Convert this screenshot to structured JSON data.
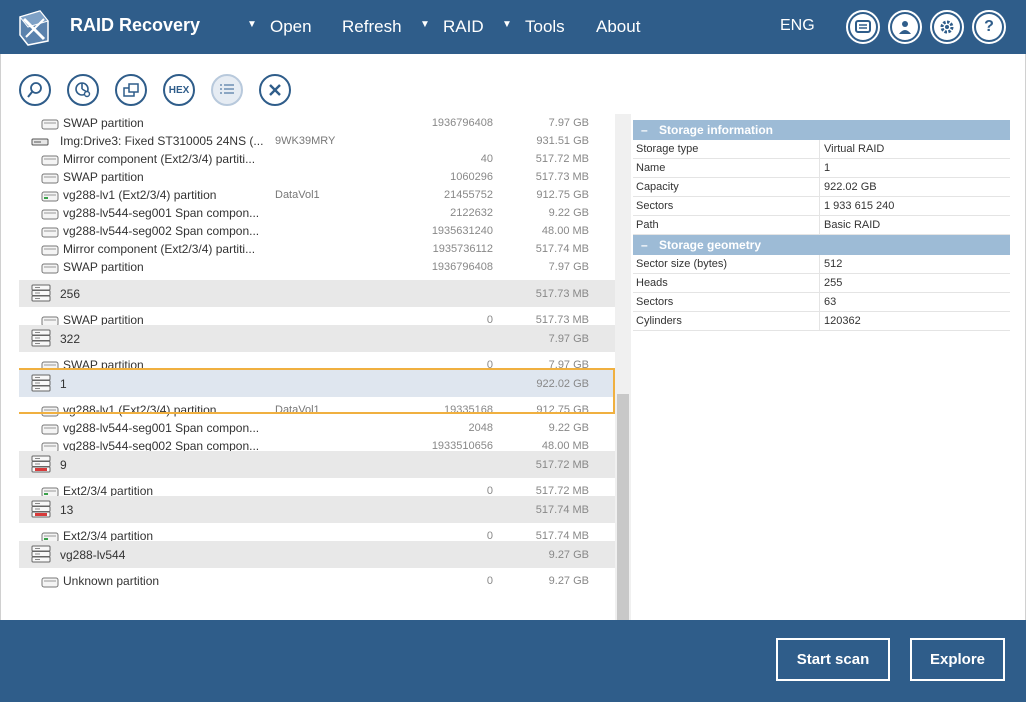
{
  "app": {
    "title": "RAID Recovery"
  },
  "menu": {
    "open": "Open",
    "refresh": "Refresh",
    "raid": "RAID",
    "tools": "Tools",
    "about": "About",
    "language": "ENG",
    "arrow": "▼"
  },
  "toolbar": {
    "hex_label": "HEX"
  },
  "tree": {
    "rows": [
      {
        "label": "SWAP partition",
        "tag": "",
        "sector": "1936796408",
        "size": "7.97 GB"
      },
      {
        "label": "Img:Drive3: Fixed ST310005 24NS (...",
        "tag": "9WK39MRY",
        "sector": "",
        "size": "931.51 GB"
      },
      {
        "label": "Mirror component (Ext2/3/4) partiti...",
        "tag": "",
        "sector": "40",
        "size": "517.72 MB"
      },
      {
        "label": "SWAP partition",
        "tag": "",
        "sector": "1060296",
        "size": "517.73 MB"
      },
      {
        "label": "vg288-lv1 (Ext2/3/4) partition",
        "tag": "DataVol1",
        "sector": "21455752",
        "size": "912.75 GB"
      },
      {
        "label": "vg288-lv544-seg001 Span compon...",
        "tag": "",
        "sector": "2122632",
        "size": "9.22 GB"
      },
      {
        "label": "vg288-lv544-seg002 Span compon...",
        "tag": "",
        "sector": "1935631240",
        "size": "48.00 MB"
      },
      {
        "label": "Mirror component (Ext2/3/4) partiti...",
        "tag": "",
        "sector": "1935736112",
        "size": "517.74 MB"
      },
      {
        "label": "SWAP partition",
        "tag": "",
        "sector": "1936796408",
        "size": "7.97 GB"
      },
      {
        "label": "256",
        "tag": "",
        "sector": "",
        "size": "517.73 MB"
      },
      {
        "label": "SWAP partition",
        "tag": "",
        "sector": "0",
        "size": "517.73 MB"
      },
      {
        "label": "322",
        "tag": "",
        "sector": "",
        "size": "7.97 GB"
      },
      {
        "label": "SWAP partition",
        "tag": "",
        "sector": "0",
        "size": "7.97 GB"
      },
      {
        "label": "1",
        "tag": "",
        "sector": "",
        "size": "922.02 GB"
      },
      {
        "label": "vg288-lv1 (Ext2/3/4) partition",
        "tag": "DataVol1",
        "sector": "19335168",
        "size": "912.75 GB"
      },
      {
        "label": "vg288-lv544-seg001 Span compon...",
        "tag": "",
        "sector": "2048",
        "size": "9.22 GB"
      },
      {
        "label": "vg288-lv544-seg002 Span compon...",
        "tag": "",
        "sector": "1933510656",
        "size": "48.00 MB"
      },
      {
        "label": "9",
        "tag": "",
        "sector": "",
        "size": "517.72 MB"
      },
      {
        "label": "Ext2/3/4 partition",
        "tag": "",
        "sector": "0",
        "size": "517.72 MB"
      },
      {
        "label": "13",
        "tag": "",
        "sector": "",
        "size": "517.74 MB"
      },
      {
        "label": "Ext2/3/4 partition",
        "tag": "",
        "sector": "0",
        "size": "517.74 MB"
      },
      {
        "label": "vg288-lv544",
        "tag": "",
        "sector": "",
        "size": "9.27 GB"
      },
      {
        "label": "Unknown partition",
        "tag": "",
        "sector": "0",
        "size": "9.27 GB"
      }
    ]
  },
  "storage_info": {
    "title": "Storage information",
    "rows": [
      {
        "k": "Storage type",
        "v": "Virtual RAID"
      },
      {
        "k": "Name",
        "v": "1"
      },
      {
        "k": "Capacity",
        "v": "922.02 GB"
      },
      {
        "k": "Sectors",
        "v": "1 933 615 240"
      },
      {
        "k": "Path",
        "v": "Basic RAID"
      }
    ]
  },
  "storage_geometry": {
    "title": "Storage geometry",
    "rows": [
      {
        "k": "Sector size (bytes)",
        "v": "512"
      },
      {
        "k": "Heads",
        "v": "255"
      },
      {
        "k": "Sectors",
        "v": "63"
      },
      {
        "k": "Cylinders",
        "v": "120362"
      }
    ]
  },
  "actions": {
    "start_scan": "Start scan",
    "explore": "Explore"
  },
  "colors": {
    "brand": "#2f5d8a",
    "header_panel": "#9dbbd6",
    "selection": "#f0b040"
  }
}
